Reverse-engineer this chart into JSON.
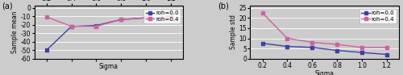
{
  "sigma": [
    0.2,
    0.4,
    0.6,
    0.8,
    1.0,
    1.2
  ],
  "plot_a": {
    "roh00": [
      -50,
      -22,
      -21,
      -14,
      -12,
      -11
    ],
    "roh04": [
      -11,
      -22,
      -22,
      -14,
      -12,
      -11
    ],
    "ylabel": "Sample mean",
    "xlabel": "Sigma",
    "ylim": [
      -60,
      2
    ],
    "yticks": [
      0,
      -10,
      -20,
      -30,
      -40,
      -50,
      -60
    ],
    "label": "(a)"
  },
  "plot_b": {
    "roh00": [
      7.5,
      6.0,
      5.5,
      4.0,
      3.0,
      2.0
    ],
    "roh04": [
      22.5,
      10.0,
      8.0,
      7.0,
      5.5,
      5.5
    ],
    "ylabel": "Sample std",
    "xlabel": "Sigma",
    "ylim": [
      0,
      26
    ],
    "yticks": [
      0,
      5,
      10,
      15,
      20,
      25
    ],
    "label": "(b)"
  },
  "color_roh00": "#4040a0",
  "color_roh04": "#d060a0",
  "legend_labels": [
    "roh=0.0",
    "roh=0.4"
  ],
  "bg_color": "#cccccc",
  "marker": "s",
  "linewidth": 1.0,
  "markersize": 3.0,
  "tick_fontsize": 5.5,
  "label_fontsize": 5.5,
  "legend_fontsize": 5.0
}
